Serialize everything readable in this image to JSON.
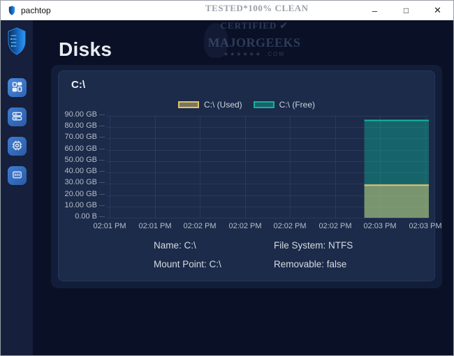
{
  "window": {
    "title": "pachtop",
    "controls": {
      "minimize": "–",
      "maximize": "□",
      "close": "✕"
    }
  },
  "watermark": {
    "line1": "TESTED*100% CLEAN",
    "line2": "CERTIFIED ✔",
    "line3": "MAJORGEEKS",
    "line4": "★★★★★★ .COM"
  },
  "sidebar": {
    "items": [
      {
        "name": "dashboard"
      },
      {
        "name": "disks"
      },
      {
        "name": "cpu"
      },
      {
        "name": "memory"
      }
    ]
  },
  "page": {
    "title": "Disks"
  },
  "card": {
    "title": "C:\\"
  },
  "chart_data": {
    "type": "area",
    "stacked": true,
    "title": "C:\\",
    "legend": [
      "C:\\ (Used)",
      "C:\\ (Free)"
    ],
    "y_ticks": [
      "90.00 GB",
      "80.00 GB",
      "70.00 GB",
      "60.00 GB",
      "50.00 GB",
      "40.00 GB",
      "30.00 GB",
      "20.00 GB",
      "10.00 GB",
      "0.00 B"
    ],
    "x_ticks": [
      "02:01 PM",
      "02:01 PM",
      "02:02 PM",
      "02:02 PM",
      "02:02 PM",
      "02:02 PM",
      "02:03 PM",
      "02:03 PM"
    ],
    "ylim_gb": [
      0,
      90
    ],
    "series": [
      {
        "name": "C:\\ (Used)",
        "color": "#e9c46a",
        "value_gb": 28.8
      },
      {
        "name": "C:\\ (Free)",
        "color": "#12b89c",
        "value_gb": 57.2
      }
    ],
    "stacked_total_gb": 86.0,
    "data_window_fraction": 0.2,
    "grid": true,
    "legend_position": "top-center"
  },
  "details": {
    "rows": [
      [
        "Name: C:\\",
        "File System: NTFS"
      ],
      [
        "Mount Point: C:\\",
        "Removable: false"
      ]
    ]
  }
}
